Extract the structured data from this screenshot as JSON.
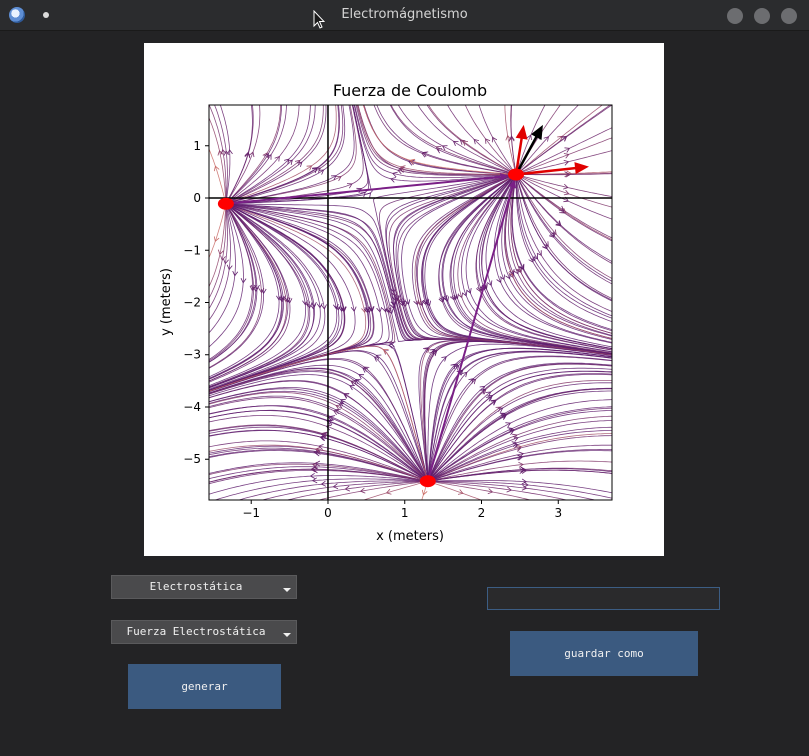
{
  "window": {
    "title": "Electromágnetismo"
  },
  "chart_data": {
    "type": "scatter",
    "title": "Fuerza de Coulomb",
    "xlabel": "x (meters)",
    "ylabel": "y (meters)",
    "xlim": [
      -1.55,
      3.7
    ],
    "ylim": [
      -5.78,
      1.78
    ],
    "xticks": [
      -1,
      0,
      1,
      2,
      3
    ],
    "yticks": [
      1,
      0,
      -1,
      -2,
      -3,
      -4,
      -5
    ],
    "xtick_labels": [
      "−1",
      "0",
      "1",
      "2",
      "3"
    ],
    "ytick_labels": [
      "1",
      "0",
      "−1",
      "−2",
      "−3",
      "−4",
      "−5"
    ],
    "charges": [
      {
        "x": 2.45,
        "y": 0.45
      },
      {
        "x": -1.33,
        "y": -0.11
      },
      {
        "x": 1.3,
        "y": -5.42
      }
    ],
    "force_vectors": [
      {
        "from": [
          -1.33,
          -0.11
        ],
        "to": [
          2.35,
          0.42
        ],
        "color": "#7a1f86"
      },
      {
        "from": [
          1.3,
          -5.42
        ],
        "to": [
          2.43,
          0.35
        ],
        "color": "#7a1f86"
      },
      {
        "from": [
          2.45,
          0.45
        ],
        "to": [
          2.55,
          1.4
        ],
        "color": "#e00000"
      },
      {
        "from": [
          2.45,
          0.45
        ],
        "to": [
          3.4,
          0.6
        ],
        "color": "#e00000"
      },
      {
        "from": [
          2.45,
          0.45
        ],
        "to": [
          2.8,
          1.4
        ],
        "color": "#000000"
      }
    ],
    "field_lines": "streamplot",
    "grid": false
  },
  "controls": {
    "mode_select": "Electrostática",
    "quantity_select": "Fuerza Electrostática",
    "generate_label": "generar",
    "filename_value": "",
    "filename_placeholder": "",
    "save_label": "guardar como"
  },
  "colors": {
    "button": "#3b5a80",
    "combo": "#4a4a4c",
    "charge": "#ff0000",
    "stream_dark": "#5a1a6e",
    "stream_light": "#f0a070"
  }
}
